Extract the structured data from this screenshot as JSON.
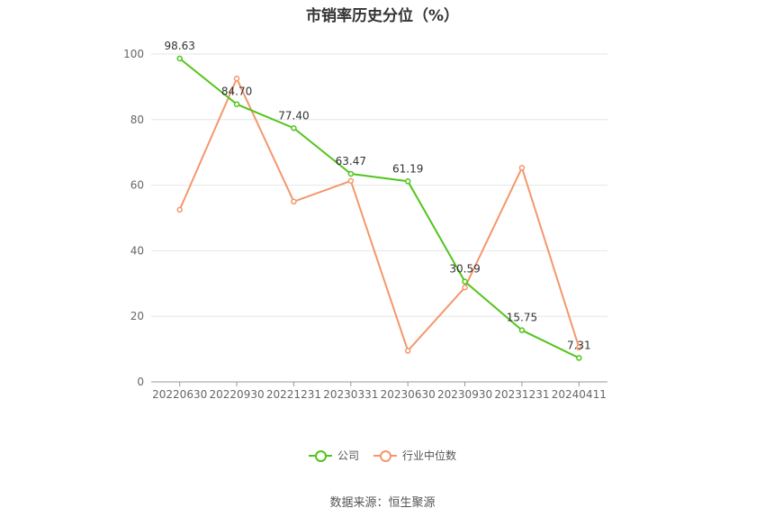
{
  "chart_data": {
    "type": "line",
    "title": "市销率历史分位（%）",
    "categories": [
      "20220630",
      "20220930",
      "20221231",
      "20230331",
      "20230630",
      "20230930",
      "20231231",
      "20240411"
    ],
    "ylim": [
      0,
      100
    ],
    "yticks": [
      0,
      20,
      40,
      60,
      80,
      100
    ],
    "grid": true,
    "legend_position": "bottom",
    "series": [
      {
        "name": "公司",
        "color": "#52c41a",
        "values": [
          98.63,
          84.7,
          77.4,
          63.47,
          61.19,
          30.59,
          15.75,
          7.31
        ],
        "labels": [
          "98.63",
          "84.70",
          "77.40",
          "63.47",
          "61.19",
          "30.59",
          "15.75",
          "7.31"
        ]
      },
      {
        "name": "行业中位数",
        "color": "#f4976c",
        "values": [
          52.5,
          92.5,
          55.0,
          61.3,
          9.5,
          28.8,
          65.3,
          10.5
        ]
      }
    ]
  },
  "source": "数据来源：恒生聚源"
}
